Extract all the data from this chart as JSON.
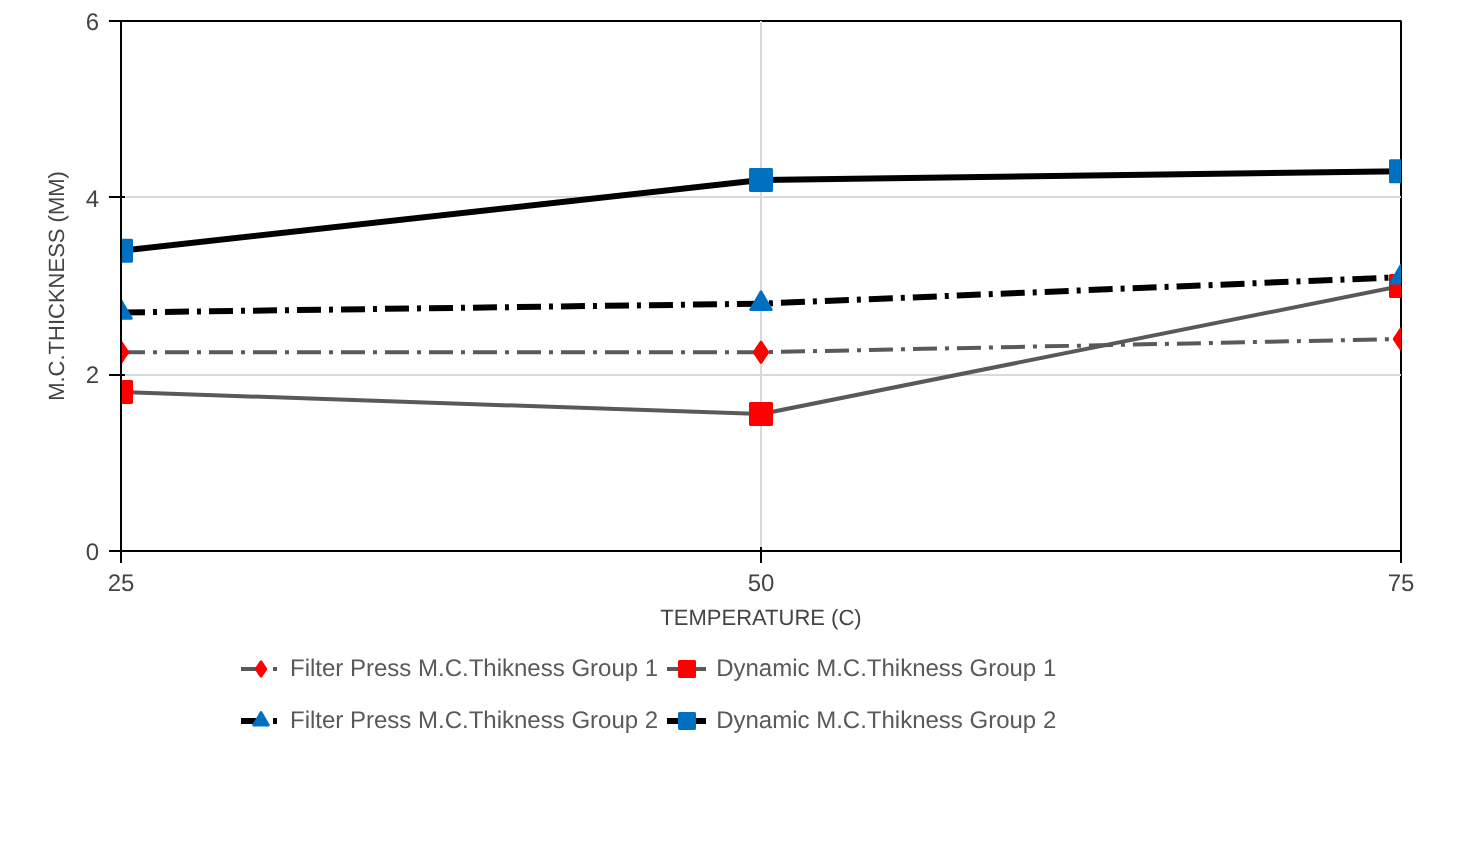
{
  "chart_data": {
    "type": "line",
    "xlabel": "TEMPERATURE (C)",
    "ylabel": "M.C.THICKNESS (MM)",
    "x": [
      25,
      50,
      75
    ],
    "xlim": [
      25,
      75
    ],
    "xticks": [
      25,
      50,
      75
    ],
    "ylim": [
      0,
      6
    ],
    "yticks": [
      0,
      2,
      4,
      6
    ],
    "grid": true,
    "legend": "bottom",
    "series": [
      {
        "name": "Filter Press M.C.Thikness Group 1",
        "color": "#ff0000",
        "marker": "diamond",
        "line_style": "dashdot",
        "values": [
          2.25,
          2.25,
          2.4
        ]
      },
      {
        "name": "Dynamic M.C.Thikness Group 1",
        "color": "#ff0000",
        "marker": "square",
        "line_style": "solid",
        "values": [
          1.8,
          1.55,
          3.0
        ]
      },
      {
        "name": "Filter Press M.C.Thikness Group 2",
        "color": "#0070c0",
        "marker": "triangle",
        "line_style": "dashdot",
        "values": [
          2.7,
          2.8,
          3.1
        ]
      },
      {
        "name": "Dynamic M.C.Thikness Group 2",
        "color": "#0070c0",
        "marker": "square",
        "line_style": "solid",
        "values": [
          3.4,
          4.2,
          4.3
        ]
      }
    ]
  }
}
